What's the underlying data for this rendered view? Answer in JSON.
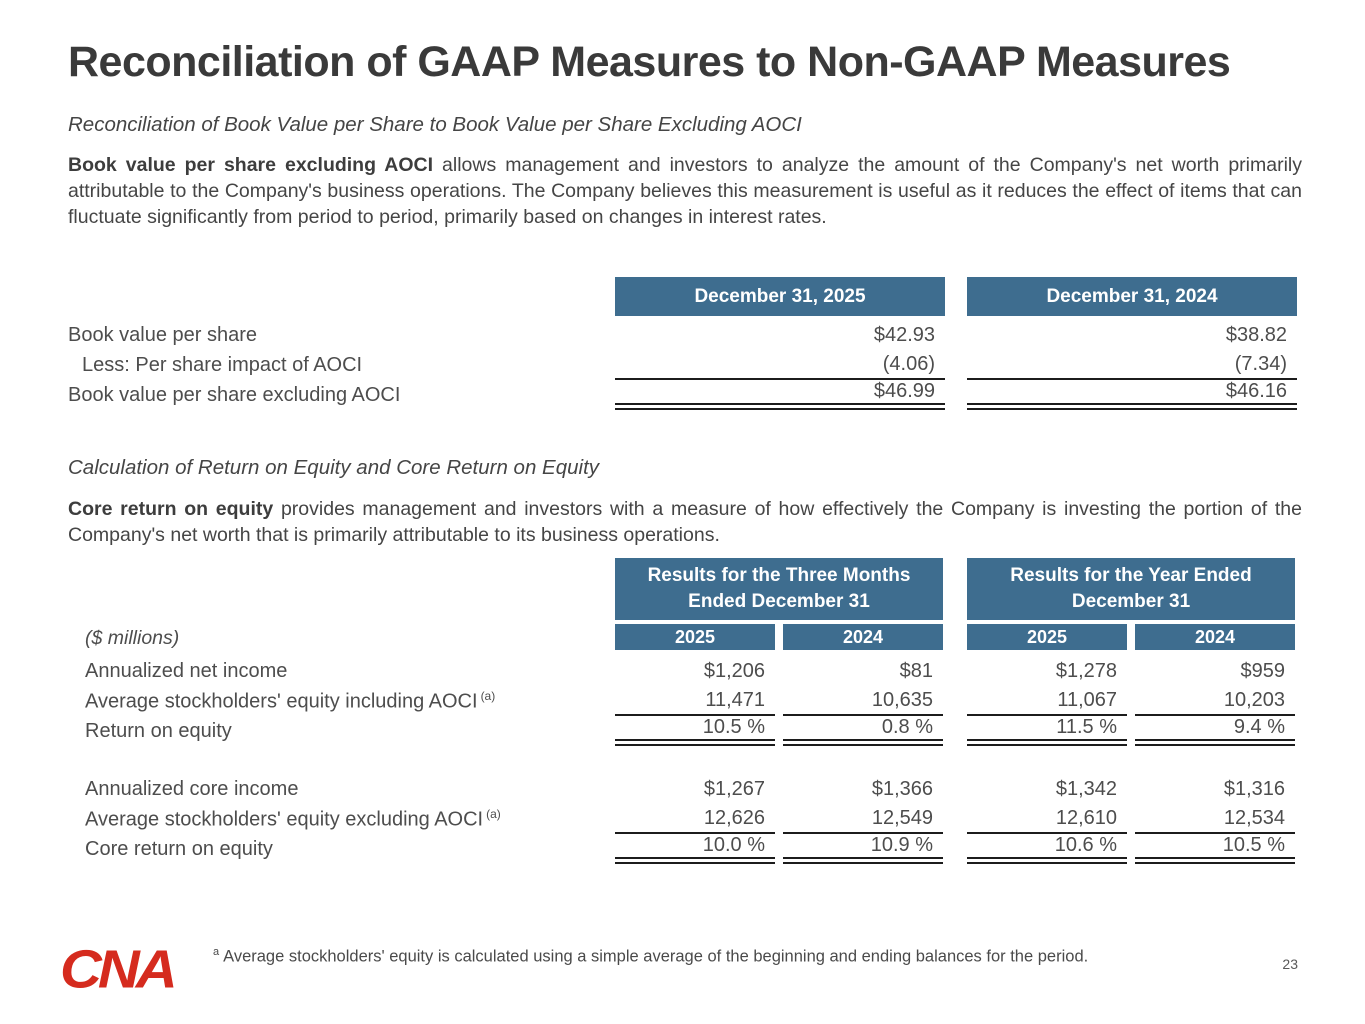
{
  "slide": {
    "title": "Reconciliation of GAAP Measures to Non-GAAP Measures",
    "page_number": "23",
    "logo_text": "CNA",
    "footnote": {
      "marker": "a",
      "text": "Average stockholders' equity is calculated using a simple average of the beginning and ending balances for the period."
    }
  },
  "colors": {
    "header_blue": "#3E6D8F",
    "logo_red": "#D52B1E",
    "text_dark": "#3A3A3A",
    "text_body": "#4D4D4D"
  },
  "section1": {
    "heading": "Reconciliation of Book Value per Share to Book Value per Share Excluding AOCI",
    "lead_bold": "Book value per share excluding AOCI",
    "lead_rest": " allows management and investors to analyze the amount of the Company's net worth primarily attributable to the Company's business operations.  The Company believes this measurement is useful as it reduces the effect of items that can fluctuate significantly from period to period, primarily based on changes in interest rates."
  },
  "table1": {
    "col_headers": [
      "December 31, 2025",
      "December 31, 2024"
    ],
    "rows": [
      {
        "label": "Book value per share",
        "values": [
          "$42.93",
          "$38.82"
        ]
      },
      {
        "label": "Less: Per share impact of AOCI",
        "values": [
          "(4.06)",
          "(7.34)"
        ]
      },
      {
        "label": "Book value per share excluding AOCI",
        "values": [
          "$46.99",
          "$46.16"
        ]
      }
    ]
  },
  "section2": {
    "heading": "Calculation of Return on Equity and Core Return on Equity",
    "lead_bold": "Core return on equity",
    "lead_rest": " provides management and investors with a measure of how effectively the Company is investing the portion of the Company's net worth that is primarily attributable to its business operations."
  },
  "table2": {
    "group_headers": [
      "Results for the Three Months Ended December 31",
      "Results for the Year Ended December 31"
    ],
    "year_headers": [
      "2025",
      "2024",
      "2025",
      "2024"
    ],
    "units_label": "($ millions)",
    "rows": [
      {
        "label": "Annualized net income",
        "values": [
          "$1,206",
          "$81",
          "$1,278",
          "$959"
        ]
      },
      {
        "label": "Average stockholders' equity including AOCI",
        "sup": "(a)",
        "values": [
          "11,471",
          "10,635",
          "11,067",
          "10,203"
        ]
      },
      {
        "label": "Return on equity",
        "values": [
          "10.5 %",
          "0.8 %",
          "11.5 %",
          "9.4 %"
        ]
      },
      {
        "label": "Annualized core income",
        "values": [
          "$1,267",
          "$1,366",
          "$1,342",
          "$1,316"
        ]
      },
      {
        "label": "Average stockholders' equity excluding AOCI",
        "sup": "(a)",
        "values": [
          "12,626",
          "12,549",
          "12,610",
          "12,534"
        ]
      },
      {
        "label": "Core return on equity",
        "values": [
          "10.0 %",
          "10.9 %",
          "10.6 %",
          "10.5 %"
        ]
      }
    ]
  }
}
